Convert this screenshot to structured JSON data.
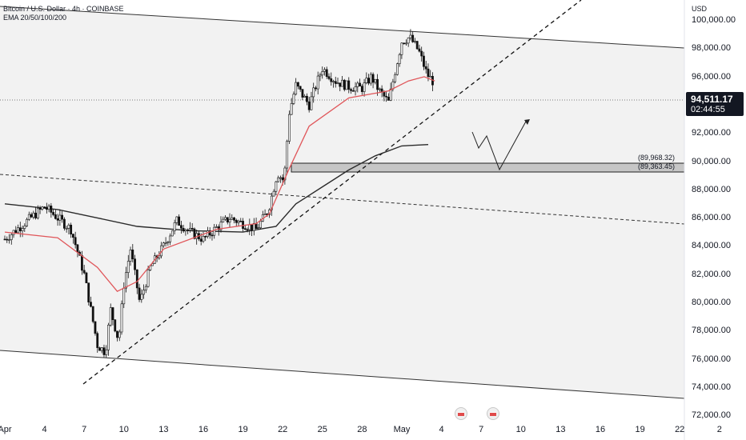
{
  "header": {
    "symbol": "Bitcoin / U.S. Dollar · 4h · COINBASE",
    "indicator": "EMA 20/50/100/200"
  },
  "price_axis": {
    "currency": "USD",
    "ticks": [
      "100,000.00",
      "98,000.00",
      "96,000.00",
      "94,000.00",
      "92,000.00",
      "90,000.00",
      "88,000.00",
      "86,000.00",
      "84,000.00",
      "82,000.00",
      "80,000.00",
      "78,000.00",
      "76,000.00",
      "74,000.00",
      "72,000.00"
    ]
  },
  "time_axis": {
    "ticks": [
      "Apr",
      "4",
      "7",
      "10",
      "13",
      "16",
      "19",
      "22",
      "25",
      "28",
      "May",
      "4",
      "7",
      "10",
      "13",
      "16",
      "19",
      "22",
      "2"
    ]
  },
  "current_price": {
    "price": "94,511.17",
    "countdown": "02:44:55"
  },
  "zone": {
    "upper_label": "(89,968.32)",
    "lower_label": "(89,363.45)"
  },
  "colors": {
    "up": "#000000",
    "down": "#000000",
    "ema_fast": "#e0565a",
    "ema_slow": "#2b2b2b",
    "zone_fill": "#c4c4c4",
    "channel_fill": "#f1f1f1"
  },
  "icons": [
    "us-flag-event-icon",
    "us-flag-event-icon"
  ],
  "chart_data": {
    "type": "candlestick",
    "title": "Bitcoin / U.S. Dollar · 4h · COINBASE",
    "indicators": [
      "EMA 20/50/100/200"
    ],
    "ylim": [
      72000,
      101500
    ],
    "price_path": [
      [
        0,
        83500
      ],
      [
        3,
        85800
      ],
      [
        5,
        84200
      ],
      [
        6,
        81000
      ],
      [
        7,
        76000
      ],
      [
        7.6,
        75500
      ],
      [
        8,
        78500
      ],
      [
        8.6,
        76300
      ],
      [
        9,
        80300
      ],
      [
        9.5,
        82800
      ],
      [
        10.2,
        79000
      ],
      [
        11,
        81500
      ],
      [
        12,
        83000
      ],
      [
        13,
        84800
      ],
      [
        14,
        84000
      ],
      [
        15,
        83500
      ],
      [
        16,
        84300
      ],
      [
        17,
        85000
      ],
      [
        18,
        84600
      ],
      [
        19,
        84200
      ],
      [
        19.9,
        85500
      ],
      [
        20.6,
        88200
      ],
      [
        21.1,
        87600
      ],
      [
        21.5,
        92500
      ],
      [
        22,
        94400
      ],
      [
        23,
        93000
      ],
      [
        23.6,
        94600
      ],
      [
        24,
        95600
      ],
      [
        25,
        94700
      ],
      [
        26,
        94300
      ],
      [
        27,
        94200
      ],
      [
        27.7,
        95000
      ],
      [
        28.3,
        94000
      ],
      [
        29,
        93200
      ],
      [
        29.5,
        95400
      ],
      [
        30,
        97500
      ],
      [
        30.6,
        97800
      ],
      [
        31.3,
        96800
      ],
      [
        31.9,
        95200
      ],
      [
        32.5,
        94511
      ]
    ],
    "ema_fast": [
      [
        0,
        84000
      ],
      [
        4,
        83600
      ],
      [
        7,
        81500
      ],
      [
        8.5,
        79800
      ],
      [
        10,
        80500
      ],
      [
        12,
        82800
      ],
      [
        16,
        84200
      ],
      [
        19,
        84600
      ],
      [
        20,
        85300
      ],
      [
        21.5,
        88500
      ],
      [
        23,
        91500
      ],
      [
        26,
        93500
      ],
      [
        29,
        94000
      ],
      [
        30.5,
        94700
      ],
      [
        31.7,
        95000
      ],
      [
        32.5,
        94700
      ]
    ],
    "ema_slow": [
      [
        0,
        86000
      ],
      [
        4,
        85600
      ],
      [
        7,
        85000
      ],
      [
        10,
        84400
      ],
      [
        14,
        84100
      ],
      [
        18,
        84000
      ],
      [
        20.5,
        84400
      ],
      [
        22,
        86000
      ],
      [
        24,
        87200
      ],
      [
        26,
        88400
      ],
      [
        28,
        89400
      ],
      [
        30,
        90100
      ],
      [
        32,
        90200
      ]
    ],
    "zone": {
      "top": 89968.32,
      "bottom": 89363.45
    },
    "current_price": 94511.17,
    "countdown": "02:44:55"
  }
}
